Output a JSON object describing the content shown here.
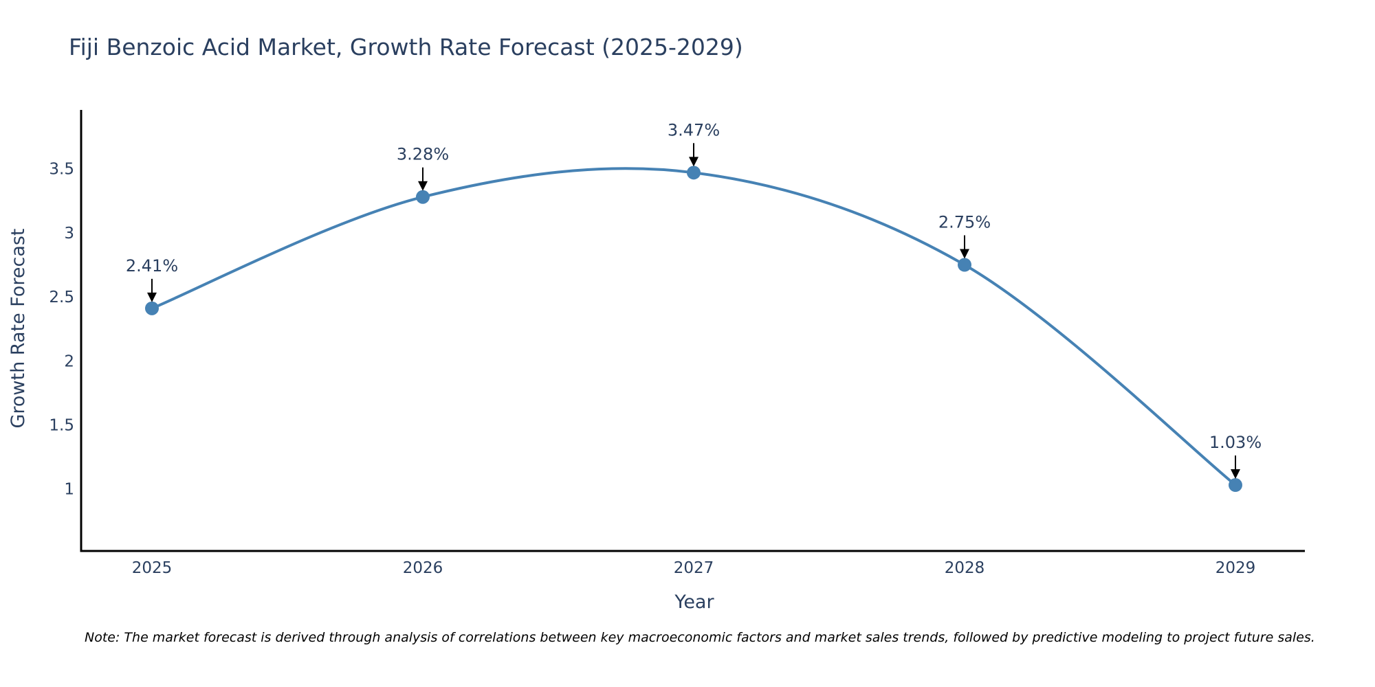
{
  "chart_data": {
    "type": "line",
    "title": "Fiji Benzoic Acid Market, Growth Rate Forecast (2025-2029)",
    "xlabel": "Year",
    "ylabel": "Growth Rate Forecast",
    "categories": [
      "2025",
      "2026",
      "2027",
      "2028",
      "2029"
    ],
    "series": [
      {
        "name": "Growth Rate Forecast",
        "values": [
          2.41,
          3.28,
          3.47,
          2.75,
          1.03
        ],
        "labels": [
          "2.41%",
          "3.28%",
          "3.47%",
          "2.75%",
          "1.03%"
        ]
      }
    ],
    "yticks": [
      1,
      1.5,
      2,
      2.5,
      3,
      3.5
    ],
    "ytick_labels": [
      "1",
      "1.5",
      "2",
      "2.5",
      "3",
      "3.5"
    ],
    "ylim": [
      0.515,
      3.96
    ],
    "line_shape": "spline",
    "grid": false,
    "colors": {
      "line": "#4682b4",
      "marker": "#4682b4",
      "arrow": "#000000",
      "axis": "#000000",
      "text": "#2a3f5f"
    }
  },
  "note": "Note: The market forecast is derived through analysis of correlations between key macroeconomic factors and market sales trends, followed by predictive modeling to project future sales."
}
